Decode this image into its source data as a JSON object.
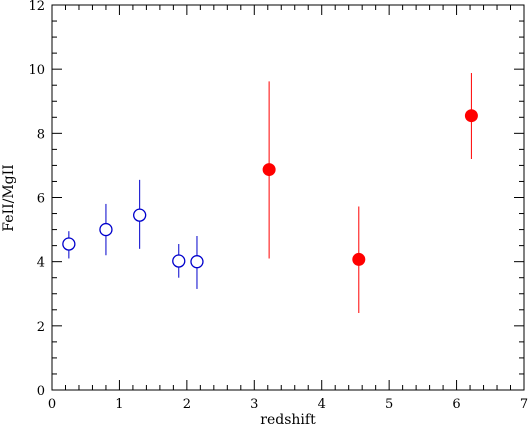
{
  "chart_data": {
    "type": "scatter",
    "title": "",
    "xlabel": "redshift",
    "ylabel": "FeII/MgII",
    "xlim": [
      0,
      7
    ],
    "ylim": [
      0,
      12
    ],
    "x_major_ticks": [
      0,
      1,
      2,
      3,
      4,
      5,
      6,
      7
    ],
    "y_major_ticks": [
      0,
      2,
      4,
      6,
      8,
      10,
      12
    ],
    "x_minor_step": 0.2,
    "y_minor_step": 0.5,
    "grid": false,
    "legend": "none",
    "series": [
      {
        "marker": "open-circle",
        "color": "#0000cc",
        "points": [
          {
            "x": 0.25,
            "y": 4.55,
            "y_low": 4.1,
            "y_high": 4.95
          },
          {
            "x": 0.8,
            "y": 5.0,
            "y_low": 4.2,
            "y_high": 5.8
          },
          {
            "x": 1.3,
            "y": 5.45,
            "y_low": 4.4,
            "y_high": 6.55
          },
          {
            "x": 1.88,
            "y": 4.02,
            "y_low": 3.5,
            "y_high": 4.55
          },
          {
            "x": 2.15,
            "y": 4.0,
            "y_low": 3.15,
            "y_high": 4.8
          }
        ]
      },
      {
        "marker": "filled-circle",
        "color": "#ff0000",
        "points": [
          {
            "x": 3.22,
            "y": 6.87,
            "y_low": 4.1,
            "y_high": 9.62
          },
          {
            "x": 4.55,
            "y": 4.07,
            "y_low": 2.4,
            "y_high": 5.72
          },
          {
            "x": 6.22,
            "y": 8.55,
            "y_low": 7.2,
            "y_high": 9.88
          }
        ]
      }
    ]
  }
}
